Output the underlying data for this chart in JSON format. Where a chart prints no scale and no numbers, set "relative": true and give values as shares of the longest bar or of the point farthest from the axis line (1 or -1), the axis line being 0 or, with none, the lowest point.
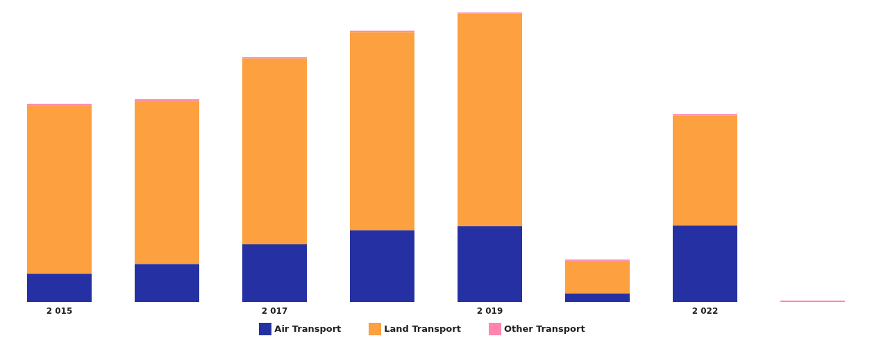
{
  "chart_data": {
    "type": "bar",
    "stacked": true,
    "relative": true,
    "categories": [
      "2 015",
      null,
      "2 017",
      null,
      "2 019",
      null,
      "2 022",
      null
    ],
    "series": [
      {
        "name": "Air Transport",
        "color": "#2531a3",
        "values": [
          0.098,
          0.131,
          0.199,
          0.248,
          0.262,
          0.03,
          0.265,
          0
        ]
      },
      {
        "name": "Land Transport",
        "color": "#fca040",
        "values": [
          0.581,
          0.564,
          0.642,
          0.684,
          0.735,
          0.112,
          0.379,
          0
        ]
      },
      {
        "name": "Other Transport",
        "color": "#ff85b0",
        "values": [
          0.005,
          0.005,
          0.005,
          0.005,
          0.003,
          0.005,
          0.005,
          0.005
        ]
      }
    ],
    "legend": "bottom"
  }
}
